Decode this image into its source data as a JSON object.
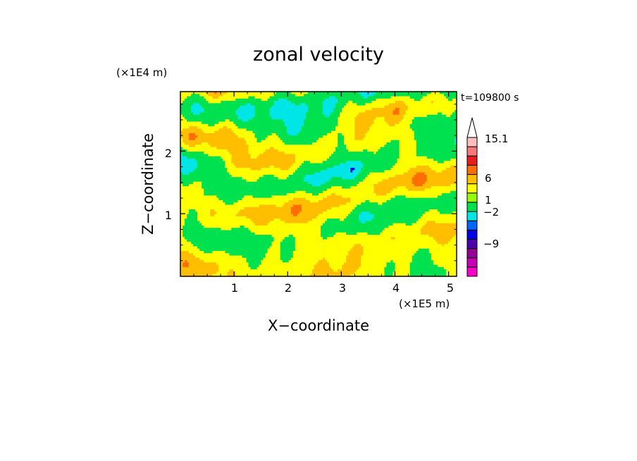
{
  "chart_data": {
    "type": "heatmap",
    "title": "zonal velocity",
    "xlabel": "X−coordinate",
    "ylabel": "Z−coordinate",
    "x_unit": "(×1E5 m)",
    "y_unit": "(×1E4 m)",
    "time_label": "t=109800 s",
    "xlim": [
      0,
      5.15
    ],
    "ylim": [
      0,
      2.95
    ],
    "x_ticks": [
      "1",
      "2",
      "3",
      "4",
      "5"
    ],
    "y_ticks": [
      "1",
      "2"
    ],
    "colorbar": {
      "labels": [
        "15.1",
        "6",
        "1",
        "−2",
        "−9"
      ],
      "extend": "max",
      "levels_bottom_to_top": [
        {
          "color": "#ff00c8"
        },
        {
          "color": "#c800b4"
        },
        {
          "color": "#960096"
        },
        {
          "color": "#4b00aa"
        },
        {
          "color": "#0000e6"
        },
        {
          "color": "#0064ff"
        },
        {
          "color": "#00e6e6"
        },
        {
          "color": "#00e150"
        },
        {
          "color": "#96ff00"
        },
        {
          "color": "#ffff00"
        },
        {
          "color": "#ffbe00"
        },
        {
          "color": "#ff6e00"
        },
        {
          "color": "#e61e1e"
        },
        {
          "color": "#ff7878"
        },
        {
          "color": "#ffbebe"
        }
      ]
    }
  }
}
